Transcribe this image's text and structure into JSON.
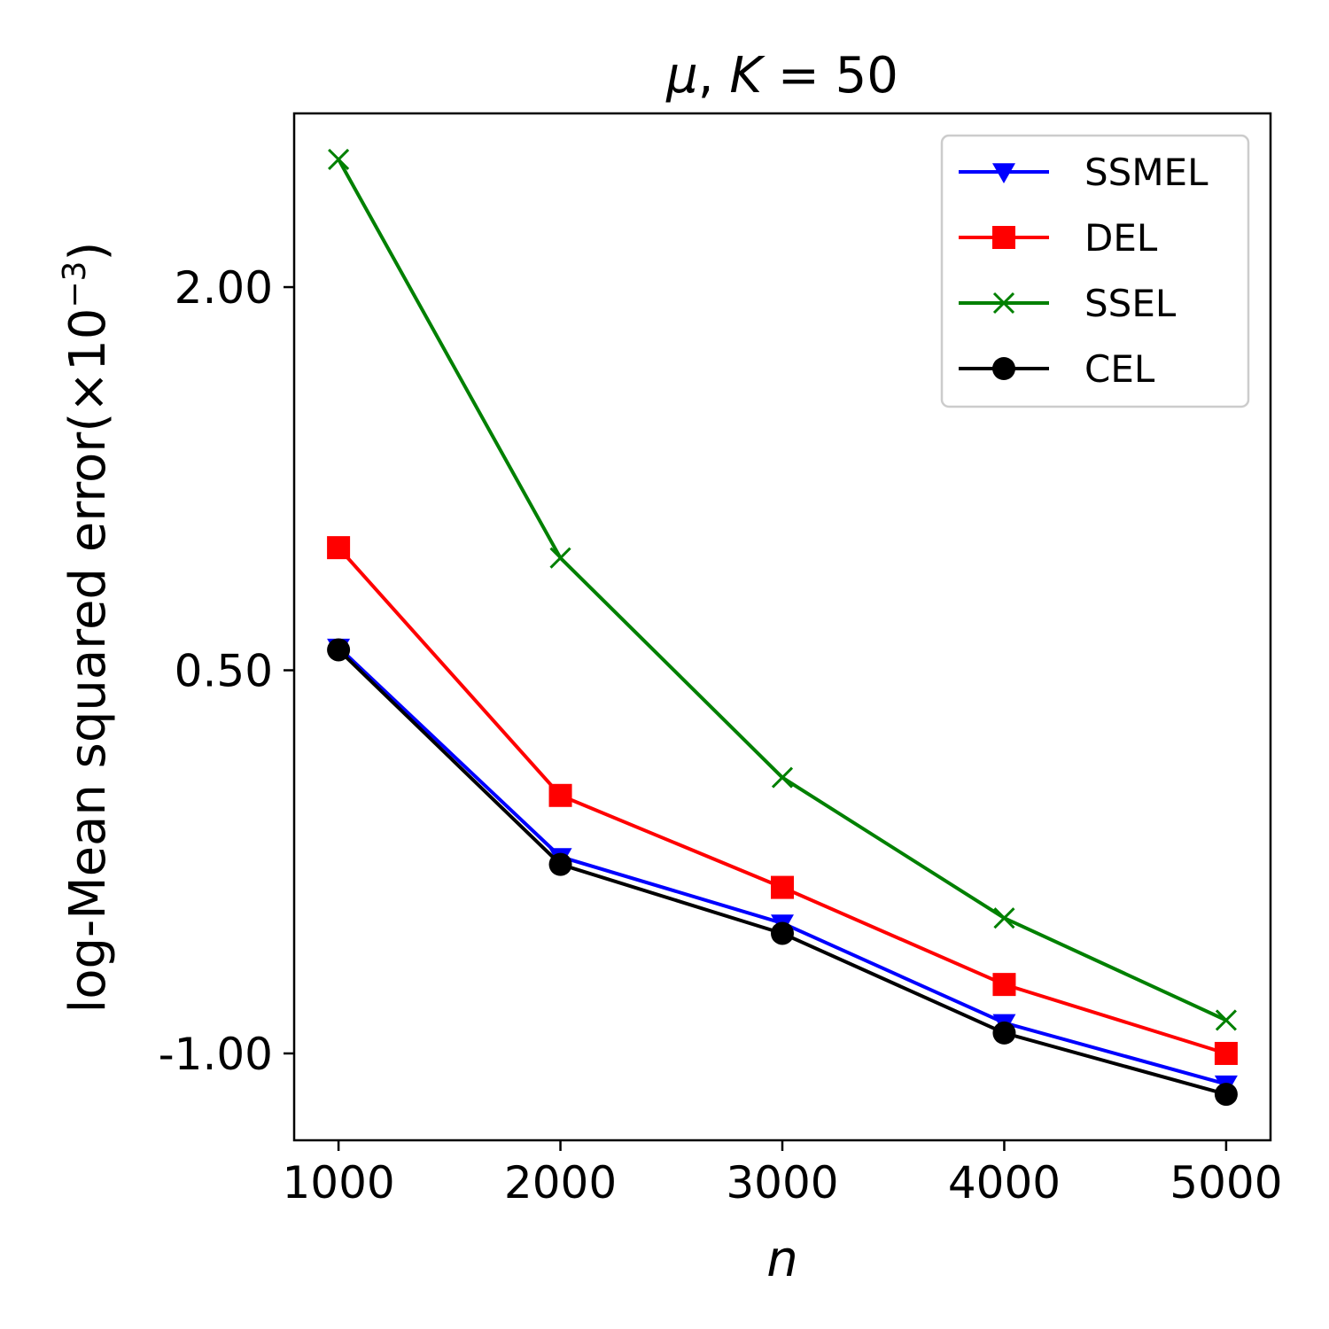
{
  "chart_data": {
    "type": "line",
    "title_parts": [
      "μ",
      ", ",
      "K",
      " = 50"
    ],
    "xlabel": "n",
    "ylabel": "log-Mean squared error(×10",
    "ylabel_exp": "−3",
    "ylabel_close": ")",
    "x": [
      1000,
      2000,
      3000,
      4000,
      5000
    ],
    "xlim": [
      800,
      5200
    ],
    "ylim": [
      -1.34,
      2.68
    ],
    "xticks": [
      1000,
      2000,
      3000,
      4000,
      5000
    ],
    "xtick_labels": [
      "1000",
      "2000",
      "3000",
      "4000",
      "5000"
    ],
    "yticks": [
      2.0,
      0.5,
      -1.0
    ],
    "ytick_labels": [
      "2.00",
      "0.50",
      "-1.00"
    ],
    "grid": false,
    "legend_position": "top-right",
    "series": [
      {
        "name": "SSMEL",
        "color": "#0000ff",
        "marker": "triangle-down",
        "values": [
          0.59,
          -0.23,
          -0.49,
          -0.88,
          -1.12
        ]
      },
      {
        "name": "DEL",
        "color": "#ff0000",
        "marker": "square",
        "values": [
          0.98,
          0.01,
          -0.35,
          -0.73,
          -1.0
        ]
      },
      {
        "name": "SSEL",
        "color": "#008000",
        "marker": "x",
        "values": [
          2.5,
          0.94,
          0.08,
          -0.47,
          -0.87
        ]
      },
      {
        "name": "CEL",
        "color": "#000000",
        "marker": "circle",
        "values": [
          0.58,
          -0.26,
          -0.53,
          -0.92,
          -1.16
        ]
      }
    ]
  }
}
